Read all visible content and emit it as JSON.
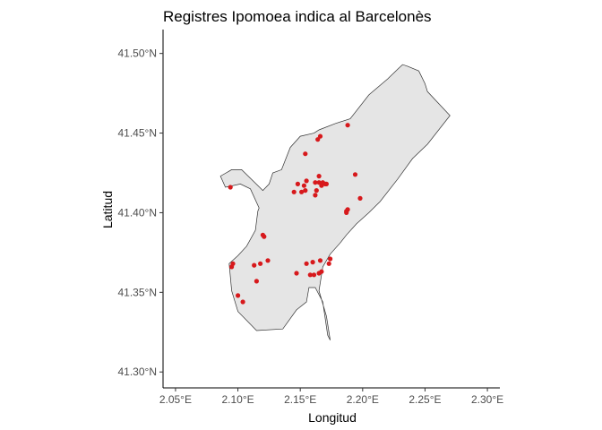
{
  "title": "Registres Ipomoea indica al Barcelonès",
  "x_axis": {
    "label": "Longitud",
    "ticks": [
      {
        "value": 2.05,
        "label": "2.05°E"
      },
      {
        "value": 2.1,
        "label": "2.10°E"
      },
      {
        "value": 2.15,
        "label": "2.15°E"
      },
      {
        "value": 2.2,
        "label": "2.20°E"
      },
      {
        "value": 2.25,
        "label": "2.25°E"
      },
      {
        "value": 2.3,
        "label": "2.30°E"
      }
    ]
  },
  "y_axis": {
    "label": "Latitud",
    "ticks": [
      {
        "value": 41.3,
        "label": "41.30°N"
      },
      {
        "value": 41.35,
        "label": "41.35°N"
      },
      {
        "value": 41.4,
        "label": "41.40°N"
      },
      {
        "value": 41.45,
        "label": "41.45°N"
      },
      {
        "value": 41.5,
        "label": "41.50°N"
      }
    ]
  },
  "colors": {
    "region_fill": "#e5e5e5",
    "region_stroke": "#333333",
    "point": "#d7191c",
    "axis": "#000000"
  },
  "chart_data": {
    "type": "scatter",
    "xlim": [
      2.04,
      2.31
    ],
    "ylim": [
      41.29,
      41.515
    ],
    "grid": false,
    "region_outline": [
      [
        2.161,
        41.45
      ],
      [
        2.165,
        41.452
      ],
      [
        2.178,
        41.456
      ],
      [
        2.19,
        41.459
      ],
      [
        2.205,
        41.474
      ],
      [
        2.22,
        41.484
      ],
      [
        2.228,
        41.49
      ],
      [
        2.232,
        41.493
      ],
      [
        2.236,
        41.492
      ],
      [
        2.245,
        41.489
      ],
      [
        2.25,
        41.481
      ],
      [
        2.252,
        41.476
      ],
      [
        2.27,
        41.461
      ],
      [
        2.252,
        41.443
      ],
      [
        2.24,
        41.434
      ],
      [
        2.228,
        41.421
      ],
      [
        2.214,
        41.407
      ],
      [
        2.205,
        41.4
      ],
      [
        2.195,
        41.393
      ],
      [
        2.187,
        41.386
      ],
      [
        2.182,
        41.381
      ],
      [
        2.174,
        41.374
      ],
      [
        2.168,
        41.366
      ],
      [
        2.165,
        41.351
      ],
      [
        2.171,
        41.335
      ],
      [
        2.174,
        41.32
      ],
      [
        2.172,
        41.323
      ],
      [
        2.168,
        41.344
      ],
      [
        2.162,
        41.353
      ],
      [
        2.157,
        41.353
      ],
      [
        2.155,
        41.344
      ],
      [
        2.147,
        41.339
      ],
      [
        2.136,
        41.327
      ],
      [
        2.115,
        41.326
      ],
      [
        2.1,
        41.338
      ],
      [
        2.095,
        41.351
      ],
      [
        2.093,
        41.368
      ],
      [
        2.1,
        41.373
      ],
      [
        2.107,
        41.379
      ],
      [
        2.114,
        41.389
      ],
      [
        2.116,
        41.401
      ],
      [
        2.117,
        41.403
      ],
      [
        2.11,
        41.415
      ],
      [
        2.102,
        41.418
      ],
      [
        2.09,
        41.416
      ],
      [
        2.086,
        41.423
      ],
      [
        2.095,
        41.427
      ],
      [
        2.103,
        41.427
      ],
      [
        2.12,
        41.414
      ],
      [
        2.125,
        41.418
      ],
      [
        2.128,
        41.425
      ],
      [
        2.135,
        41.427
      ],
      [
        2.142,
        41.441
      ],
      [
        2.15,
        41.448
      ],
      [
        2.161,
        41.45
      ]
    ],
    "points": [
      [
        2.188,
        41.455
      ],
      [
        2.166,
        41.448
      ],
      [
        2.164,
        41.446
      ],
      [
        2.154,
        41.437
      ],
      [
        2.194,
        41.424
      ],
      [
        2.165,
        41.423
      ],
      [
        2.162,
        41.419
      ],
      [
        2.165,
        41.419
      ],
      [
        2.168,
        41.419
      ],
      [
        2.171,
        41.418
      ],
      [
        2.167,
        41.417
      ],
      [
        2.17,
        41.418
      ],
      [
        2.148,
        41.418
      ],
      [
        2.145,
        41.413
      ],
      [
        2.153,
        41.417
      ],
      [
        2.154,
        41.414
      ],
      [
        2.151,
        41.413
      ],
      [
        2.155,
        41.42
      ],
      [
        2.163,
        41.414
      ],
      [
        2.162,
        41.411
      ],
      [
        2.094,
        41.416
      ],
      [
        2.198,
        41.409
      ],
      [
        2.187,
        41.401
      ],
      [
        2.188,
        41.402
      ],
      [
        2.187,
        41.4
      ],
      [
        2.12,
        41.386
      ],
      [
        2.121,
        41.385
      ],
      [
        2.174,
        41.371
      ],
      [
        2.173,
        41.368
      ],
      [
        2.166,
        41.37
      ],
      [
        2.16,
        41.369
      ],
      [
        2.155,
        41.368
      ],
      [
        2.161,
        41.361
      ],
      [
        2.158,
        41.361
      ],
      [
        2.165,
        41.362
      ],
      [
        2.167,
        41.363
      ],
      [
        2.147,
        41.362
      ],
      [
        2.124,
        41.37
      ],
      [
        2.118,
        41.368
      ],
      [
        2.113,
        41.367
      ],
      [
        2.096,
        41.368
      ],
      [
        2.095,
        41.366
      ],
      [
        2.115,
        41.357
      ],
      [
        2.1,
        41.348
      ],
      [
        2.104,
        41.344
      ]
    ]
  }
}
